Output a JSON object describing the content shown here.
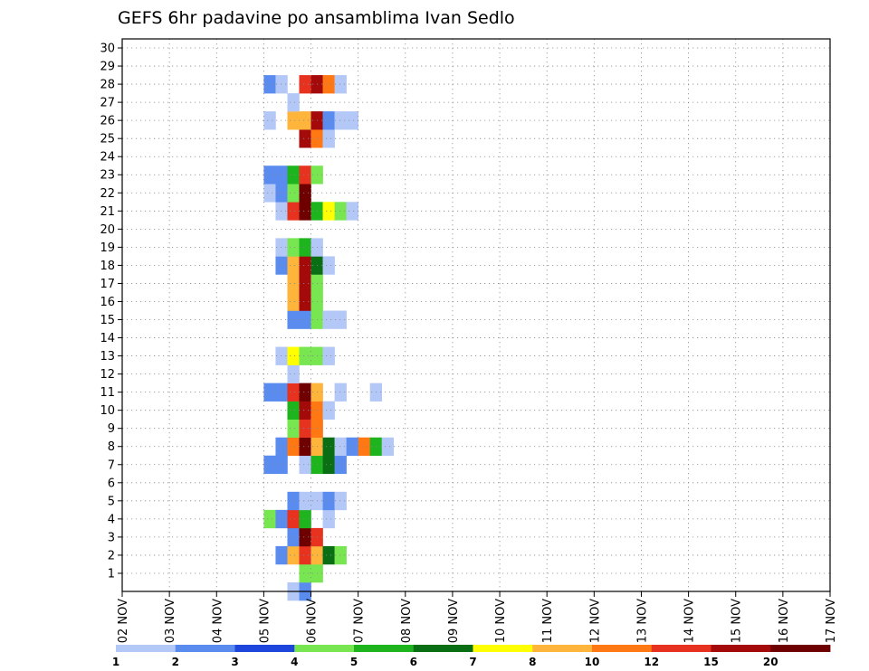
{
  "chart_data": {
    "type": "heatmap",
    "title": "GEFS 6hr padavine po ansamblima Ivan Sedlo",
    "xlabel": "",
    "ylabel": "",
    "x_ticks": [
      "02 NOV",
      "03 NOV",
      "04 NOV",
      "05 NOV",
      "06 NOV",
      "07 NOV",
      "08 NOV",
      "09 NOV",
      "10 NOV",
      "11 NOV",
      "12 NOV",
      "13 NOV",
      "14 NOV",
      "15 NOV",
      "16 NOV",
      "17 NOV"
    ],
    "y_ticks": [
      "1",
      "2",
      "3",
      "4",
      "5",
      "6",
      "7",
      "8",
      "9",
      "10",
      "11",
      "12",
      "13",
      "14",
      "15",
      "16",
      "17",
      "18",
      "19",
      "20",
      "21",
      "22",
      "23",
      "24",
      "25",
      "26",
      "27",
      "28",
      "29",
      "30"
    ],
    "ylim": [
      0,
      30
    ],
    "grid": true,
    "legend": {
      "placement": "bottom",
      "levels": [
        "1",
        "2",
        "3",
        "4",
        "5",
        "6",
        "7",
        "8",
        "10",
        "12",
        "15",
        "20"
      ],
      "colors": [
        "#b4c8f8",
        "#5a8cf0",
        "#1e46dc",
        "#78e650",
        "#1eb41e",
        "#0a6e14",
        "#ffff00",
        "#ffb43c",
        "#ff7814",
        "#e6321e",
        "#a50a0a",
        "#6e0000"
      ]
    },
    "cells": [
      [
        0,
        5.5,
        1
      ],
      [
        0,
        5.75,
        2
      ],
      [
        1,
        5.75,
        4
      ],
      [
        1,
        6.0,
        4
      ],
      [
        2,
        5.25,
        2
      ],
      [
        2,
        5.5,
        8
      ],
      [
        2,
        5.75,
        12
      ],
      [
        2,
        6.0,
        8
      ],
      [
        2,
        6.25,
        6
      ],
      [
        2,
        6.5,
        4
      ],
      [
        3,
        5.5,
        2
      ],
      [
        3,
        5.75,
        20
      ],
      [
        3,
        6.0,
        12
      ],
      [
        4,
        5.0,
        4
      ],
      [
        4,
        5.25,
        2
      ],
      [
        4,
        5.5,
        12
      ],
      [
        4,
        5.75,
        5
      ],
      [
        4,
        6.25,
        1
      ],
      [
        5,
        5.5,
        2
      ],
      [
        5,
        5.75,
        1
      ],
      [
        5,
        6.0,
        1
      ],
      [
        5,
        6.25,
        2
      ],
      [
        5,
        6.5,
        1
      ],
      [
        7,
        5.0,
        2
      ],
      [
        7,
        5.25,
        2
      ],
      [
        7,
        5.75,
        1
      ],
      [
        7,
        6.0,
        5
      ],
      [
        7,
        6.25,
        6
      ],
      [
        7,
        6.5,
        2
      ],
      [
        8,
        5.25,
        2
      ],
      [
        8,
        5.5,
        10
      ],
      [
        8,
        5.75,
        20
      ],
      [
        8,
        6.0,
        8
      ],
      [
        8,
        6.25,
        6
      ],
      [
        8,
        6.5,
        1
      ],
      [
        8,
        6.75,
        2
      ],
      [
        8,
        7.0,
        10
      ],
      [
        8,
        7.25,
        5
      ],
      [
        8,
        7.5,
        1
      ],
      [
        9,
        5.5,
        4
      ],
      [
        9,
        5.75,
        12
      ],
      [
        9,
        6.0,
        10
      ],
      [
        10,
        5.5,
        5
      ],
      [
        10,
        5.75,
        15
      ],
      [
        10,
        6.0,
        10
      ],
      [
        10,
        6.25,
        1
      ],
      [
        11,
        5.0,
        2
      ],
      [
        11,
        5.25,
        2
      ],
      [
        11,
        5.5,
        12
      ],
      [
        11,
        5.75,
        20
      ],
      [
        11,
        6.0,
        8
      ],
      [
        11,
        6.5,
        1
      ],
      [
        11,
        7.25,
        1
      ],
      [
        12,
        5.5,
        1
      ],
      [
        13,
        5.25,
        1
      ],
      [
        13,
        5.5,
        7
      ],
      [
        13,
        5.75,
        4
      ],
      [
        13,
        6.0,
        4
      ],
      [
        13,
        6.25,
        1
      ],
      [
        15,
        5.5,
        2
      ],
      [
        15,
        5.75,
        2
      ],
      [
        15,
        6.0,
        4
      ],
      [
        15,
        6.25,
        1
      ],
      [
        15,
        6.5,
        1
      ],
      [
        16,
        5.5,
        8
      ],
      [
        16,
        5.75,
        15
      ],
      [
        16,
        6.0,
        4
      ],
      [
        17,
        5.5,
        8
      ],
      [
        17,
        5.75,
        15
      ],
      [
        17,
        6.0,
        4
      ],
      [
        18,
        5.25,
        2
      ],
      [
        18,
        5.5,
        8
      ],
      [
        18,
        5.75,
        15
      ],
      [
        18,
        6.0,
        6
      ],
      [
        18,
        6.25,
        1
      ],
      [
        19,
        5.25,
        1
      ],
      [
        19,
        5.5,
        4
      ],
      [
        19,
        5.75,
        5
      ],
      [
        19,
        6.0,
        1
      ],
      [
        21,
        5.25,
        1
      ],
      [
        21,
        5.5,
        12
      ],
      [
        21,
        5.75,
        20
      ],
      [
        21,
        6.0,
        5
      ],
      [
        21,
        6.25,
        7
      ],
      [
        21,
        6.5,
        4
      ],
      [
        21,
        6.75,
        1
      ],
      [
        22,
        5.0,
        1
      ],
      [
        22,
        5.25,
        2
      ],
      [
        22,
        5.5,
        4
      ],
      [
        22,
        5.75,
        20
      ],
      [
        23,
        5.0,
        2
      ],
      [
        23,
        5.25,
        2
      ],
      [
        23,
        5.5,
        5
      ],
      [
        23,
        5.75,
        12
      ],
      [
        23,
        6.0,
        4
      ],
      [
        25,
        5.75,
        15
      ],
      [
        25,
        6.0,
        10
      ],
      [
        25,
        6.25,
        1
      ],
      [
        26,
        5.0,
        1
      ],
      [
        26,
        5.5,
        8
      ],
      [
        26,
        5.75,
        8
      ],
      [
        26,
        6.0,
        15
      ],
      [
        26,
        6.25,
        2
      ],
      [
        26,
        6.5,
        1
      ],
      [
        26,
        6.75,
        1
      ],
      [
        27,
        5.5,
        1
      ],
      [
        28,
        5.0,
        2
      ],
      [
        28,
        5.25,
        1
      ],
      [
        28,
        5.75,
        12
      ],
      [
        28,
        6.0,
        15
      ],
      [
        28,
        6.25,
        10
      ],
      [
        28,
        6.5,
        1
      ]
    ]
  }
}
